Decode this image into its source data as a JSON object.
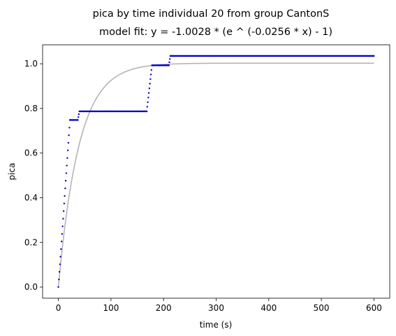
{
  "chart_data": {
    "type": "scatter",
    "title": "pica by time individual 20 from group CantonS",
    "subtitle": "model fit: y = -1.0028 * (e ^ (-0.0256 * x) - 1)",
    "xlabel": "time (s)",
    "ylabel": "pica",
    "xlim": [
      -30,
      630
    ],
    "ylim": [
      -0.05,
      1.085
    ],
    "xticks": [
      0,
      100,
      200,
      300,
      400,
      500,
      600
    ],
    "yticks": [
      0.0,
      0.2,
      0.4,
      0.6,
      0.8,
      1.0
    ],
    "xtick_labels": [
      "0",
      "100",
      "200",
      "300",
      "400",
      "500",
      "600"
    ],
    "ytick_labels": [
      "0.0",
      "0.2",
      "0.4",
      "0.6",
      "0.8",
      "1.0"
    ],
    "grid": false,
    "legend": "none",
    "fit_curve": {
      "a": 1.0028,
      "b": 0.0256,
      "x_range": [
        0,
        600
      ],
      "color": "#b0b0b0"
    },
    "data_color": "#0000cc",
    "segments": [
      {
        "kind": "ramp",
        "x": [
          0,
          22
        ],
        "y": [
          0.0,
          0.748
        ]
      },
      {
        "kind": "flat",
        "x": [
          22,
          37
        ],
        "y": 0.748
      },
      {
        "kind": "ramp",
        "x": [
          37,
          40
        ],
        "y": [
          0.748,
          0.787
        ]
      },
      {
        "kind": "flat",
        "x": [
          40,
          168
        ],
        "y": 0.787
      },
      {
        "kind": "ramp",
        "x": [
          168,
          178
        ],
        "y": [
          0.787,
          0.993
        ]
      },
      {
        "kind": "flat",
        "x": [
          178,
          210
        ],
        "y": 0.993
      },
      {
        "kind": "ramp",
        "x": [
          210,
          213
        ],
        "y": [
          0.993,
          1.035
        ]
      },
      {
        "kind": "flat",
        "x": [
          213,
          600
        ],
        "y": 1.035
      }
    ]
  }
}
